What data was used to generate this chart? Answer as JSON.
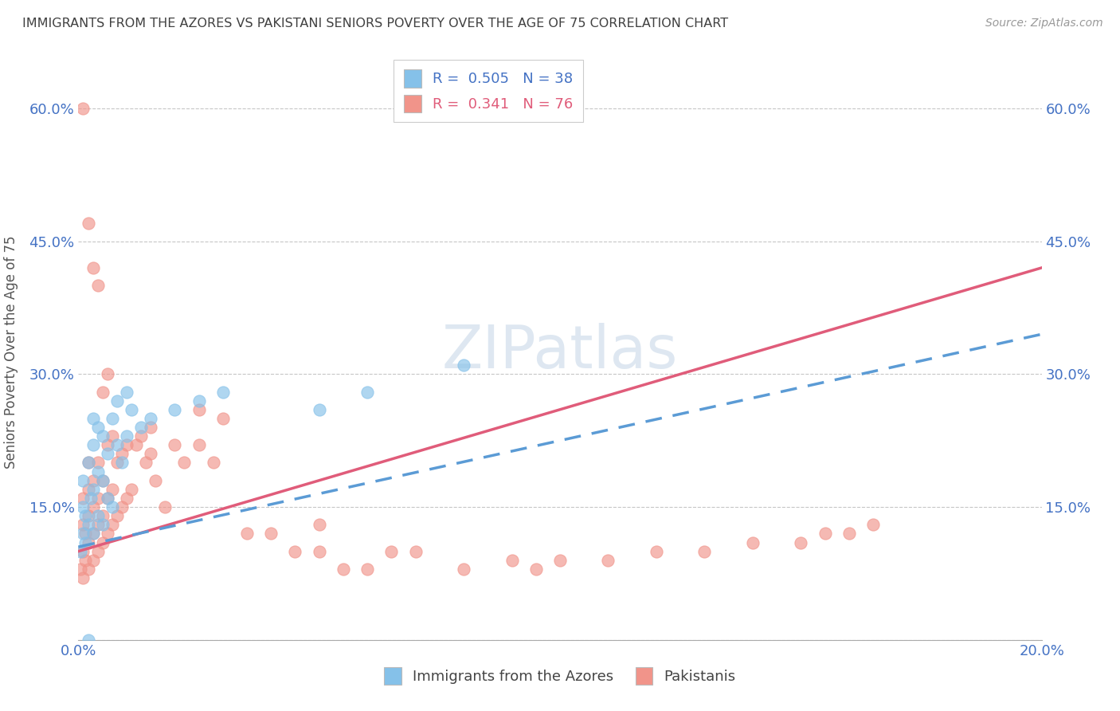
{
  "title": "IMMIGRANTS FROM THE AZORES VS PAKISTANI SENIORS POVERTY OVER THE AGE OF 75 CORRELATION CHART",
  "source": "Source: ZipAtlas.com",
  "ylabel": "Seniors Poverty Over the Age of 75",
  "legend1_label": "Immigrants from the Azores",
  "legend2_label": "Pakistanis",
  "r1": 0.505,
  "n1": 38,
  "r2": 0.341,
  "n2": 76,
  "xlim": [
    0.0,
    0.2
  ],
  "ylim": [
    0.0,
    0.65
  ],
  "yticks": [
    0.0,
    0.15,
    0.3,
    0.45,
    0.6
  ],
  "ytick_labels": [
    "",
    "15.0%",
    "30.0%",
    "45.0%",
    "60.0%"
  ],
  "xticks": [
    0.0,
    0.04,
    0.08,
    0.12,
    0.16,
    0.2
  ],
  "xtick_labels": [
    "0.0%",
    "",
    "",
    "",
    "",
    "20.0%"
  ],
  "color_azores": "#85c1e9",
  "color_pakistani": "#f1948a",
  "color_line_azores": "#5b9bd5",
  "color_line_pakistani": "#e05c7a",
  "color_axis_labels": "#4472c4",
  "color_title": "#404040",
  "background_color": "#ffffff",
  "watermark": "ZIPatlas",
  "azores_x": [
    0.0005,
    0.001,
    0.001,
    0.001,
    0.0015,
    0.0015,
    0.002,
    0.002,
    0.0025,
    0.003,
    0.003,
    0.003,
    0.003,
    0.004,
    0.004,
    0.004,
    0.005,
    0.005,
    0.005,
    0.006,
    0.006,
    0.007,
    0.007,
    0.008,
    0.008,
    0.009,
    0.01,
    0.01,
    0.011,
    0.013,
    0.015,
    0.02,
    0.025,
    0.03,
    0.05,
    0.06,
    0.08,
    0.002
  ],
  "azores_y": [
    0.1,
    0.12,
    0.15,
    0.18,
    0.11,
    0.14,
    0.13,
    0.2,
    0.16,
    0.12,
    0.17,
    0.22,
    0.25,
    0.14,
    0.19,
    0.24,
    0.13,
    0.18,
    0.23,
    0.16,
    0.21,
    0.15,
    0.25,
    0.22,
    0.27,
    0.2,
    0.23,
    0.28,
    0.26,
    0.24,
    0.25,
    0.26,
    0.27,
    0.28,
    0.26,
    0.28,
    0.31,
    0.0
  ],
  "pakistani_x": [
    0.0005,
    0.001,
    0.001,
    0.001,
    0.001,
    0.0015,
    0.0015,
    0.002,
    0.002,
    0.002,
    0.002,
    0.002,
    0.003,
    0.003,
    0.003,
    0.003,
    0.004,
    0.004,
    0.004,
    0.004,
    0.005,
    0.005,
    0.005,
    0.006,
    0.006,
    0.006,
    0.007,
    0.007,
    0.007,
    0.008,
    0.008,
    0.009,
    0.009,
    0.01,
    0.01,
    0.011,
    0.012,
    0.013,
    0.014,
    0.015,
    0.015,
    0.016,
    0.018,
    0.02,
    0.022,
    0.025,
    0.025,
    0.028,
    0.03,
    0.035,
    0.04,
    0.045,
    0.05,
    0.05,
    0.055,
    0.06,
    0.065,
    0.07,
    0.08,
    0.09,
    0.095,
    0.1,
    0.11,
    0.12,
    0.13,
    0.14,
    0.15,
    0.155,
    0.16,
    0.165,
    0.001,
    0.002,
    0.003,
    0.004,
    0.005,
    0.006
  ],
  "pakistani_y": [
    0.08,
    0.07,
    0.1,
    0.13,
    0.16,
    0.09,
    0.12,
    0.08,
    0.11,
    0.14,
    0.17,
    0.2,
    0.09,
    0.12,
    0.15,
    0.18,
    0.1,
    0.13,
    0.16,
    0.2,
    0.11,
    0.14,
    0.18,
    0.12,
    0.16,
    0.22,
    0.13,
    0.17,
    0.23,
    0.14,
    0.2,
    0.15,
    0.21,
    0.16,
    0.22,
    0.17,
    0.22,
    0.23,
    0.2,
    0.21,
    0.24,
    0.18,
    0.15,
    0.22,
    0.2,
    0.22,
    0.26,
    0.2,
    0.25,
    0.12,
    0.12,
    0.1,
    0.1,
    0.13,
    0.08,
    0.08,
    0.1,
    0.1,
    0.08,
    0.09,
    0.08,
    0.09,
    0.09,
    0.1,
    0.1,
    0.11,
    0.11,
    0.12,
    0.12,
    0.13,
    0.6,
    0.47,
    0.42,
    0.4,
    0.28,
    0.3
  ],
  "line_azores_x0": 0.0,
  "line_azores_y0": 0.105,
  "line_azores_x1": 0.2,
  "line_azores_y1": 0.345,
  "line_pakistani_x0": 0.0,
  "line_pakistani_y0": 0.1,
  "line_pakistani_x1": 0.2,
  "line_pakistani_y1": 0.42
}
